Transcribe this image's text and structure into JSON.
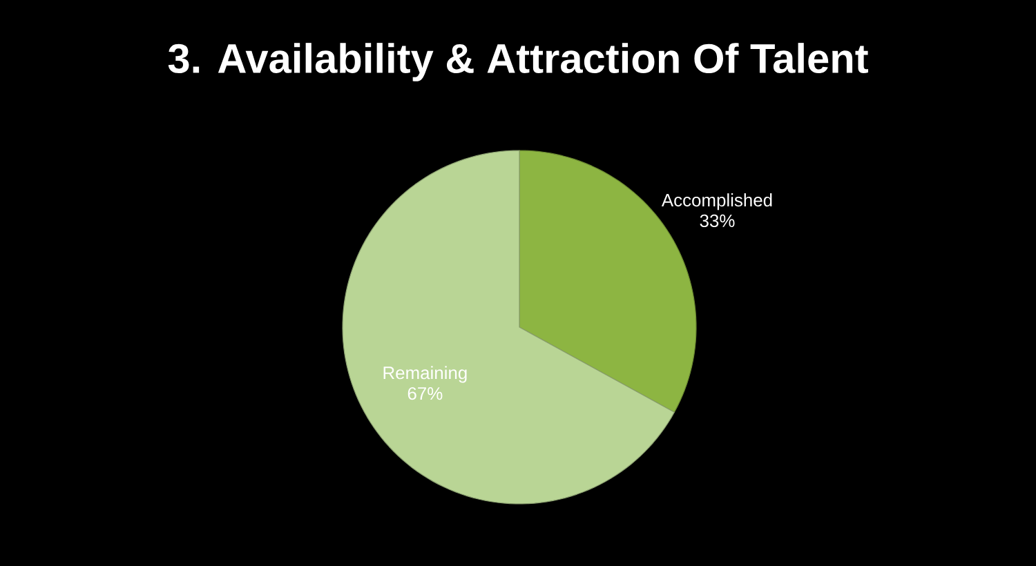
{
  "chart_data": {
    "type": "pie",
    "title": "3. Availability & Attraction Of Talent",
    "categories": [
      "Accomplished",
      "Remaining"
    ],
    "values": [
      33,
      67
    ],
    "value_labels": [
      "33%",
      "67%"
    ],
    "colors": [
      "#8db542",
      "#b9d595"
    ]
  }
}
